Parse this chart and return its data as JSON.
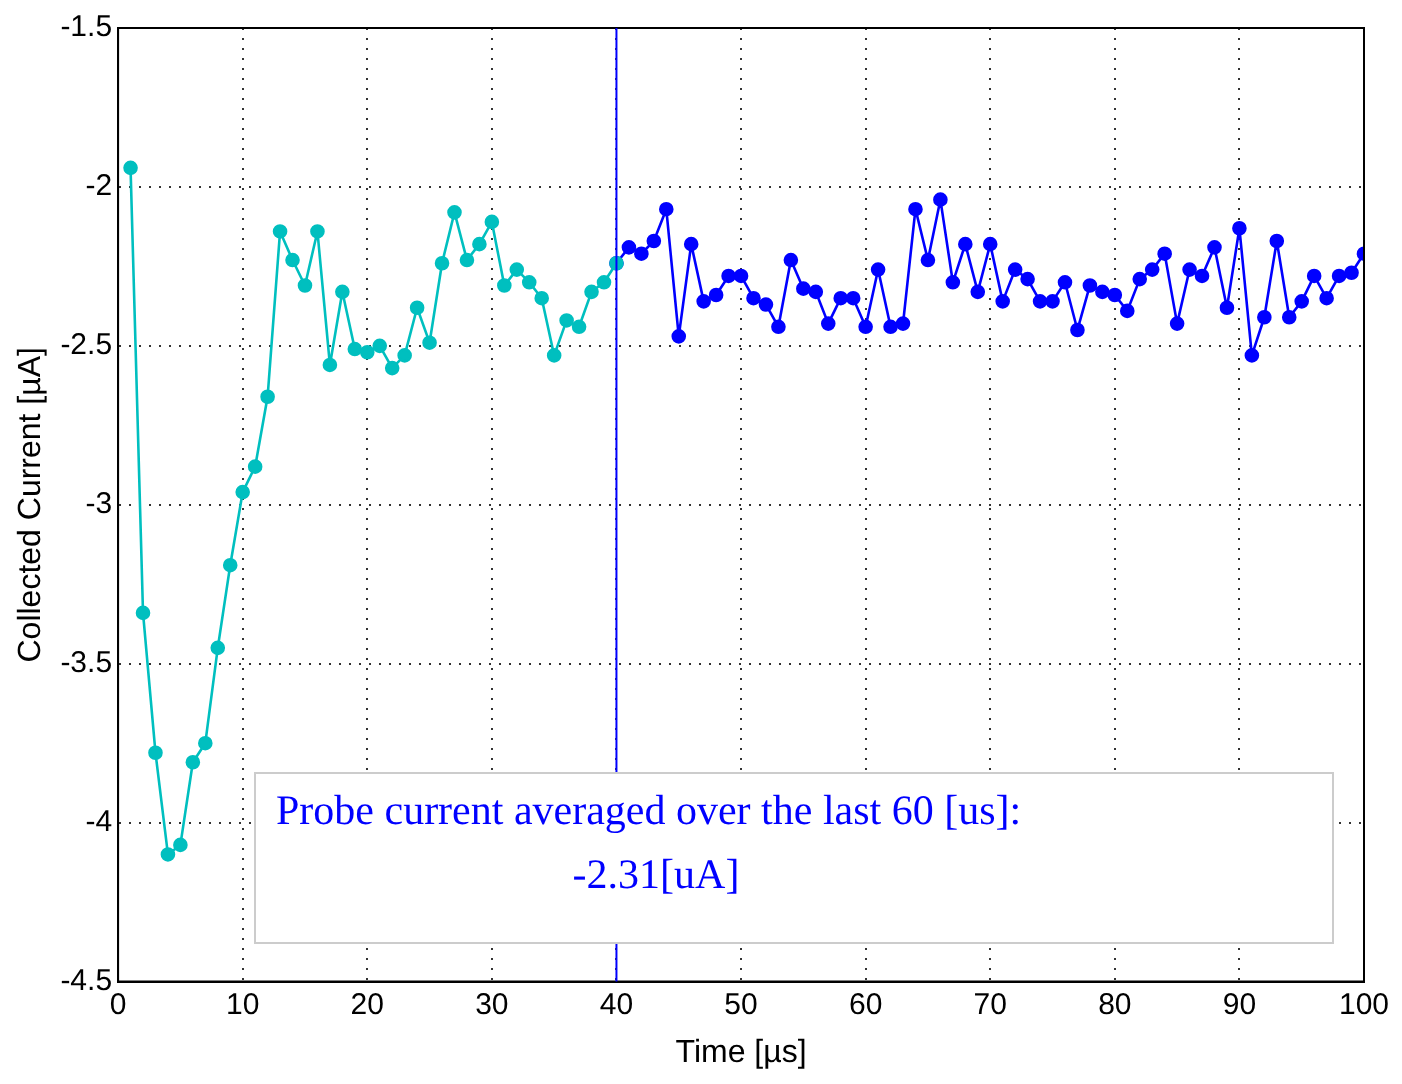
{
  "chart_data": {
    "type": "line",
    "xlabel": "Time [µs]",
    "ylabel": "Collected Current [µA]",
    "xlim": [
      0,
      100
    ],
    "ylim": [
      -4.5,
      -1.5
    ],
    "xticks": [
      0,
      10,
      20,
      30,
      40,
      50,
      60,
      70,
      80,
      90,
      100
    ],
    "yticks": [
      -4.5,
      -4,
      -3.5,
      -3,
      -2.5,
      -2,
      -1.5
    ],
    "grid": true,
    "marker": "circle",
    "line_style": "solid",
    "series": [
      {
        "color": "#00bfbf",
        "x": [
          1,
          2,
          3,
          4,
          5,
          6,
          7,
          8,
          9,
          10,
          11,
          12,
          13,
          14,
          15,
          16,
          17,
          18,
          19,
          20,
          21,
          22,
          23,
          24,
          25,
          26,
          27,
          28,
          29,
          30,
          31,
          32,
          33,
          34,
          35,
          36,
          37,
          38,
          39,
          40
        ],
        "values": [
          -1.94,
          -3.34,
          -3.78,
          -4.1,
          -4.07,
          -3.81,
          -3.75,
          -3.45,
          -3.19,
          -2.96,
          -2.88,
          -2.66,
          -2.14,
          -2.23,
          -2.31,
          -2.14,
          -2.56,
          -2.33,
          -2.51,
          -2.52,
          -2.5,
          -2.57,
          -2.53,
          -2.38,
          -2.49,
          -2.24,
          -2.08,
          -2.23,
          -2.18,
          -2.11,
          -2.31,
          -2.26,
          -2.3,
          -2.35,
          -2.53,
          -2.42,
          -2.44,
          -2.33,
          -2.3,
          -2.24
        ]
      },
      {
        "color": "#0000ff",
        "x": [
          40,
          41,
          42,
          43,
          44,
          45,
          46,
          47,
          48,
          49,
          50,
          51,
          52,
          53,
          54,
          55,
          56,
          57,
          58,
          59,
          60,
          61,
          62,
          63,
          64,
          65,
          66,
          67,
          68,
          69,
          70,
          71,
          72,
          73,
          74,
          75,
          76,
          77,
          78,
          79,
          80,
          81,
          82,
          83,
          84,
          85,
          86,
          87,
          88,
          89,
          90,
          91,
          92,
          93,
          94,
          95,
          96,
          97,
          98,
          99,
          100
        ],
        "values": [
          -2.24,
          -2.19,
          -2.21,
          -2.17,
          -2.07,
          -2.47,
          -2.18,
          -2.36,
          -2.34,
          -2.28,
          -2.28,
          -2.35,
          -2.37,
          -2.44,
          -2.23,
          -2.32,
          -2.33,
          -2.43,
          -2.35,
          -2.35,
          -2.44,
          -2.26,
          -2.44,
          -2.43,
          -2.07,
          -2.23,
          -2.04,
          -2.3,
          -2.18,
          -2.33,
          -2.18,
          -2.36,
          -2.26,
          -2.29,
          -2.36,
          -2.36,
          -2.3,
          -2.45,
          -2.31,
          -2.33,
          -2.34,
          -2.39,
          -2.29,
          -2.26,
          -2.21,
          -2.43,
          -2.26,
          -2.28,
          -2.19,
          -2.38,
          -2.13,
          -2.53,
          -2.41,
          -2.17,
          -2.41,
          -2.36,
          -2.28,
          -2.35,
          -2.28,
          -2.27,
          -2.21
        ]
      }
    ],
    "ref_lines": [
      {
        "axis": "x",
        "value": 40,
        "color": "#0000ff"
      }
    ],
    "annotations": [
      "Probe current averaged over the last 60 [us]:",
      "-2.31[uA]"
    ]
  }
}
